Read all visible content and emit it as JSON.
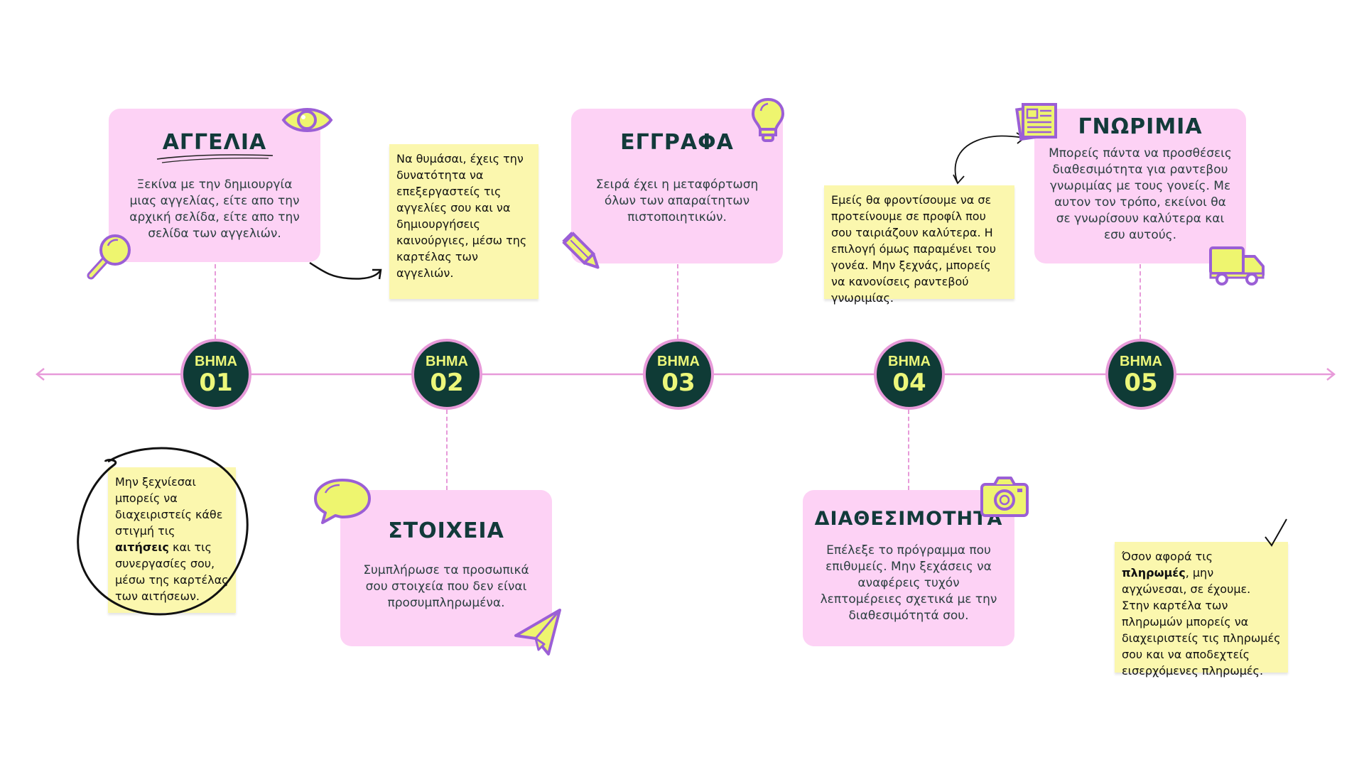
{
  "colors": {
    "card_pink": "#fdd2f5",
    "note_yellow": "#fbf7ae",
    "step_dark_green": "#0f3b36",
    "step_text_yellow": "#ecf77a",
    "timeline_pink": "#e79ad9",
    "icon_yellow": "#eef56f",
    "icon_purple": "#9b5fd6"
  },
  "steps": [
    {
      "label": "ΒΗΜΑ",
      "number": "01"
    },
    {
      "label": "ΒΗΜΑ",
      "number": "02"
    },
    {
      "label": "ΒΗΜΑ",
      "number": "03"
    },
    {
      "label": "ΒΗΜΑ",
      "number": "04"
    },
    {
      "label": "ΒΗΜΑ",
      "number": "05"
    }
  ],
  "cards": {
    "aggelia": {
      "title": "ΑΓΓΕΛΙΑ",
      "body": "Ξεκίνα με την δημιουργία μιας αγγελίας, είτε απο την αρχική σελίδα, είτε απο την σελίδα των αγγελιών."
    },
    "eggrafa": {
      "title": "ΕΓΓΡΑΦΑ",
      "body": "Σειρά έχει η μεταφόρτωση όλων των απαραίτητων πιστοποιητικών."
    },
    "gnorimia": {
      "title": "ΓΝΩΡΙΜΙΑ",
      "body": "Μπορείς πάντα να προσθέσεις διαθεσιμότητα για ραντεβου γνωριμίας με τους γονείς. Με αυτον τον τρόπο, εκείνοι θα σε γνωρίσουν καλύτερα και εσυ αυτούς."
    },
    "stoixeia": {
      "title": "ΣΤΟΙΧΕΙΑ",
      "body": "Συμπλήρωσε τα προσωπικά σου στοιχεία που δεν είναι προσυμπληρωμένα."
    },
    "diathesimotita": {
      "title": "ΔΙΑΘΕΣΙΜΟΤΗΤΑ",
      "body": "Επέλεξε το πρόγραμμα που επιθυμείς. Μην ξεχάσεις να αναφέρεις τυχόν λεπτομέρειες σχετικά με την διαθεσιμότητά σου."
    }
  },
  "notes": {
    "edit_ads": "Να θυμάσαι, έχεις την δυνατότητα να επεξεργαστείς τις αγγελίες σου και να δημιουργήσεις καινούργιες, μέσω της καρτέλας των αγγελιών.",
    "profiles": "Εμείς θα φροντίσουμε να σε προτείνουμε σε προφίλ που σου ταιριάζουν καλύτερα. Η επιλογή όμως παραμένει του γονέα. Μην ξεχνάς, μπορείς να κανονίσεις ραντεβού γνωριμίας.",
    "applications": {
      "before": "Μην ξεχνίεσαι μπορείς να διαχειριστείς κάθε στιγμή τις ",
      "bold": "αιτήσεις",
      "after": " και τις συνεργασίες σου, μέσω της καρτέλας των αιτήσεων."
    },
    "payments": {
      "before": "Όσον αφορά τις ",
      "bold": "πληρωμές",
      "after": ", μην αγχώνεσαι, σε έχουμε. Στην καρτέλα των πληρωμών μπορείς να διαχειριστείς τις πληρωμές σου και να αποδεχτείς εισερχόμενες πληρωμές."
    }
  },
  "icons": [
    "eye-icon",
    "magnifier-icon",
    "lightbulb-icon",
    "pencil-icon",
    "newspaper-icon",
    "truck-icon",
    "speech-bubble-icon",
    "paper-plane-icon",
    "camera-icon",
    "checkmark-icon"
  ]
}
